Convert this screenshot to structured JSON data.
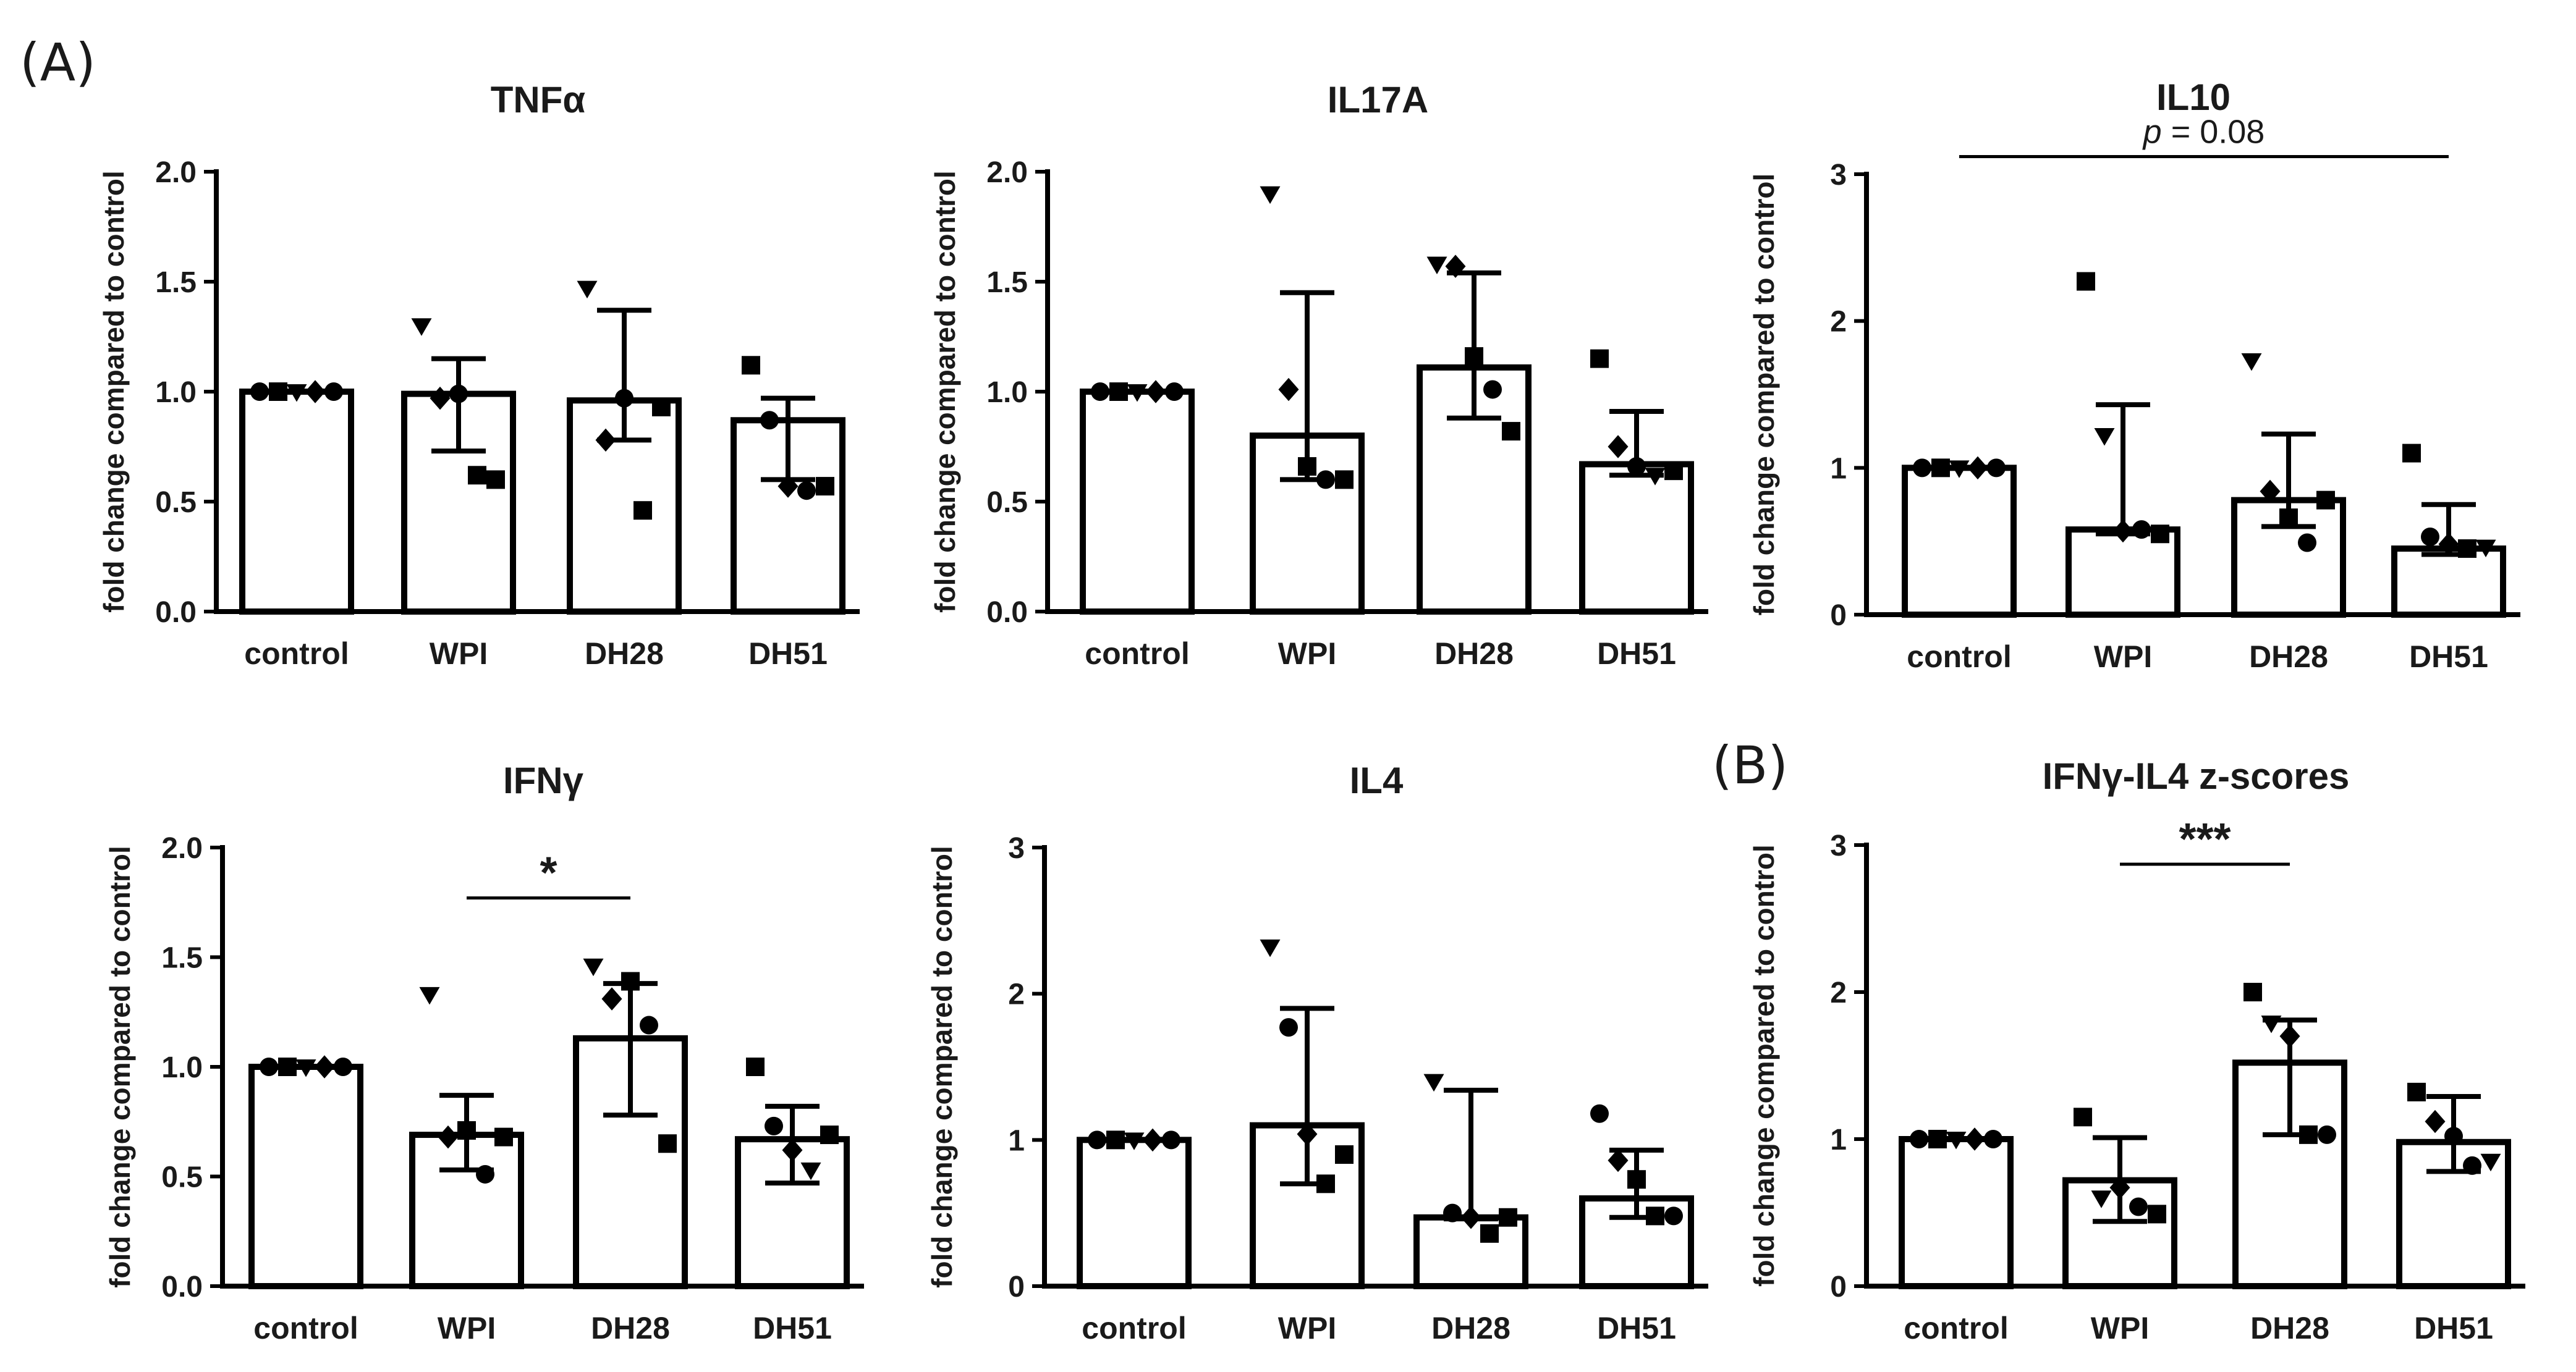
{
  "panel_labels": {
    "a": "(A)",
    "b": "(B)"
  },
  "chart_data": [
    {
      "type": "bar",
      "title": "TNFα",
      "ylabel": "fold change compared to control",
      "categories": [
        "control",
        "WPI",
        "DH28",
        "DH51"
      ],
      "ylim": [
        0,
        2.0
      ],
      "yticks": [
        "0.0",
        "0.5",
        "1.0",
        "1.5",
        "2.0"
      ],
      "values": [
        1.0,
        0.99,
        0.96,
        0.87
      ],
      "error": [
        [
          1.0,
          1.0
        ],
        [
          0.73,
          1.15
        ],
        [
          0.78,
          1.37
        ],
        [
          0.6,
          0.97
        ]
      ],
      "points": [
        [
          [
            "circle",
            1.0
          ],
          [
            "square",
            1.0
          ],
          [
            "triangle",
            1.0
          ],
          [
            "diamond",
            1.0
          ],
          [
            "circle",
            1.0
          ]
        ],
        [
          [
            "triangle",
            1.3
          ],
          [
            "diamond",
            0.97
          ],
          [
            "circle",
            0.99
          ],
          [
            "square",
            0.62
          ],
          [
            "square",
            0.6
          ]
        ],
        [
          [
            "triangle",
            1.47
          ],
          [
            "diamond",
            0.78
          ],
          [
            "circle",
            0.97
          ],
          [
            "square",
            0.46
          ],
          [
            "square",
            0.93
          ]
        ],
        [
          [
            "square",
            1.12
          ],
          [
            "circle",
            0.87
          ],
          [
            "diamond",
            0.57
          ],
          [
            "circle",
            0.55
          ],
          [
            "square",
            0.57
          ]
        ]
      ],
      "annotations": []
    },
    {
      "type": "bar",
      "title": "IL17A",
      "ylabel": "fold change compared to control",
      "categories": [
        "control",
        "WPI",
        "DH28",
        "DH51"
      ],
      "ylim": [
        0,
        2.0
      ],
      "yticks": [
        "0.0",
        "0.5",
        "1.0",
        "1.5",
        "2.0"
      ],
      "values": [
        1.0,
        0.8,
        1.11,
        0.67
      ],
      "error": [
        [
          1.0,
          1.0
        ],
        [
          0.6,
          1.45
        ],
        [
          0.88,
          1.54
        ],
        [
          0.62,
          0.91
        ]
      ],
      "points": [
        [
          [
            "circle",
            1.0
          ],
          [
            "square",
            1.0
          ],
          [
            "triangle",
            1.0
          ],
          [
            "diamond",
            1.0
          ],
          [
            "circle",
            1.0
          ]
        ],
        [
          [
            "triangle",
            1.9
          ],
          [
            "diamond",
            1.01
          ],
          [
            "square",
            0.66
          ],
          [
            "circle",
            0.6
          ],
          [
            "square",
            0.6
          ]
        ],
        [
          [
            "triangle",
            1.58
          ],
          [
            "diamond",
            1.57
          ],
          [
            "square",
            1.16
          ],
          [
            "circle",
            1.01
          ],
          [
            "square",
            0.82
          ]
        ],
        [
          [
            "square",
            1.15
          ],
          [
            "diamond",
            0.75
          ],
          [
            "circle",
            0.66
          ],
          [
            "triangle",
            0.62
          ],
          [
            "square",
            0.64
          ]
        ]
      ],
      "annotations": []
    },
    {
      "type": "bar",
      "title": "IL10",
      "ylabel": "fold change compared to control",
      "categories": [
        "control",
        "WPI",
        "DH28",
        "DH51"
      ],
      "ylim": [
        0,
        3
      ],
      "yticks": [
        "0",
        "1",
        "2",
        "3"
      ],
      "values": [
        1.0,
        0.58,
        0.78,
        0.45
      ],
      "error": [
        [
          1.0,
          1.0
        ],
        [
          0.55,
          1.43
        ],
        [
          0.6,
          1.23
        ],
        [
          0.41,
          0.75
        ]
      ],
      "points": [
        [
          [
            "circle",
            1.0
          ],
          [
            "square",
            1.0
          ],
          [
            "triangle",
            1.0
          ],
          [
            "diamond",
            1.0
          ],
          [
            "circle",
            1.0
          ]
        ],
        [
          [
            "square",
            2.27
          ],
          [
            "triangle",
            1.22
          ],
          [
            "diamond",
            0.57
          ],
          [
            "circle",
            0.58
          ],
          [
            "square",
            0.55
          ]
        ],
        [
          [
            "triangle",
            1.73
          ],
          [
            "diamond",
            0.84
          ],
          [
            "square",
            0.66
          ],
          [
            "circle",
            0.49
          ],
          [
            "square",
            0.78
          ]
        ],
        [
          [
            "square",
            1.1
          ],
          [
            "circle",
            0.53
          ],
          [
            "diamond",
            0.48
          ],
          [
            "square",
            0.45
          ],
          [
            "triangle",
            0.46
          ]
        ]
      ],
      "annotations": [
        {
          "text": "= 0.08",
          "italic_prefix": "p",
          "from": 0,
          "to": 3,
          "y": 3.12
        }
      ]
    },
    {
      "type": "bar",
      "title": "IFNγ",
      "ylabel": "fold change compared to control",
      "categories": [
        "control",
        "WPI",
        "DH28",
        "DH51"
      ],
      "ylim": [
        0,
        2.0
      ],
      "yticks": [
        "0.0",
        "0.5",
        "1.0",
        "1.5",
        "2.0"
      ],
      "values": [
        1.0,
        0.69,
        1.13,
        0.67
      ],
      "error": [
        [
          1.0,
          1.0
        ],
        [
          0.53,
          0.87
        ],
        [
          0.78,
          1.38
        ],
        [
          0.47,
          0.82
        ]
      ],
      "points": [
        [
          [
            "circle",
            1.0
          ],
          [
            "square",
            1.0
          ],
          [
            "triangle",
            1.0
          ],
          [
            "diamond",
            1.0
          ],
          [
            "circle",
            1.0
          ]
        ],
        [
          [
            "triangle",
            1.33
          ],
          [
            "diamond",
            0.68
          ],
          [
            "square",
            0.71
          ],
          [
            "circle",
            0.51
          ],
          [
            "square",
            0.68
          ]
        ],
        [
          [
            "triangle",
            1.46
          ],
          [
            "diamond",
            1.31
          ],
          [
            "square",
            1.39
          ],
          [
            "circle",
            1.19
          ],
          [
            "square",
            0.65
          ]
        ],
        [
          [
            "square",
            1.0
          ],
          [
            "circle",
            0.73
          ],
          [
            "diamond",
            0.62
          ],
          [
            "triangle",
            0.53
          ],
          [
            "square",
            0.69
          ]
        ]
      ],
      "annotations": [
        {
          "text": "*",
          "from": 1,
          "to": 2,
          "y": 1.77
        }
      ]
    },
    {
      "type": "bar",
      "title": "IL4",
      "ylabel": "fold change compared to control",
      "categories": [
        "control",
        "WPI",
        "DH28",
        "DH51"
      ],
      "ylim": [
        0,
        3
      ],
      "yticks": [
        "0",
        "1",
        "2",
        "3"
      ],
      "values": [
        1.0,
        1.1,
        0.47,
        0.6
      ],
      "error": [
        [
          1.0,
          1.0
        ],
        [
          0.7,
          1.9
        ],
        [
          0.46,
          1.34
        ],
        [
          0.47,
          0.93
        ]
      ],
      "points": [
        [
          [
            "circle",
            1.0
          ],
          [
            "square",
            1.0
          ],
          [
            "triangle",
            1.0
          ],
          [
            "diamond",
            1.0
          ],
          [
            "circle",
            1.0
          ]
        ],
        [
          [
            "triangle",
            2.32
          ],
          [
            "circle",
            1.77
          ],
          [
            "diamond",
            1.04
          ],
          [
            "square",
            0.7
          ],
          [
            "square",
            0.9
          ]
        ],
        [
          [
            "triangle",
            1.4
          ],
          [
            "circle",
            0.5
          ],
          [
            "diamond",
            0.47
          ],
          [
            "square",
            0.36
          ],
          [
            "square",
            0.47
          ]
        ],
        [
          [
            "circle",
            1.18
          ],
          [
            "diamond",
            0.86
          ],
          [
            "square",
            0.73
          ],
          [
            "square",
            0.48
          ],
          [
            "circle",
            0.48
          ]
        ]
      ],
      "annotations": []
    },
    {
      "type": "bar",
      "title": "IFNγ-IL4 z-scores",
      "ylabel": "fold change compared to control",
      "categories": [
        "control",
        "WPI",
        "DH28",
        "DH51"
      ],
      "ylim": [
        0,
        3
      ],
      "yticks": [
        "0",
        "1",
        "2",
        "3"
      ],
      "values": [
        1.0,
        0.72,
        1.52,
        0.98
      ],
      "error": [
        [
          1.0,
          1.0
        ],
        [
          0.44,
          1.01
        ],
        [
          1.03,
          1.81
        ],
        [
          0.78,
          1.29
        ]
      ],
      "points": [
        [
          [
            "circle",
            1.0
          ],
          [
            "square",
            1.0
          ],
          [
            "triangle",
            1.0
          ],
          [
            "diamond",
            1.0
          ],
          [
            "circle",
            1.0
          ]
        ],
        [
          [
            "square",
            1.15
          ],
          [
            "triangle",
            0.6
          ],
          [
            "diamond",
            0.67
          ],
          [
            "circle",
            0.54
          ],
          [
            "square",
            0.49
          ]
        ],
        [
          [
            "square",
            2.0
          ],
          [
            "triangle",
            1.79
          ],
          [
            "diamond",
            1.7
          ],
          [
            "square",
            1.03
          ],
          [
            "circle",
            1.03
          ]
        ],
        [
          [
            "square",
            1.32
          ],
          [
            "diamond",
            1.12
          ],
          [
            "circle",
            1.02
          ],
          [
            "circle",
            0.82
          ],
          [
            "triangle",
            0.85
          ]
        ]
      ],
      "annotations": [
        {
          "text": "***",
          "from": 1,
          "to": 2,
          "y": 2.87
        }
      ]
    }
  ]
}
